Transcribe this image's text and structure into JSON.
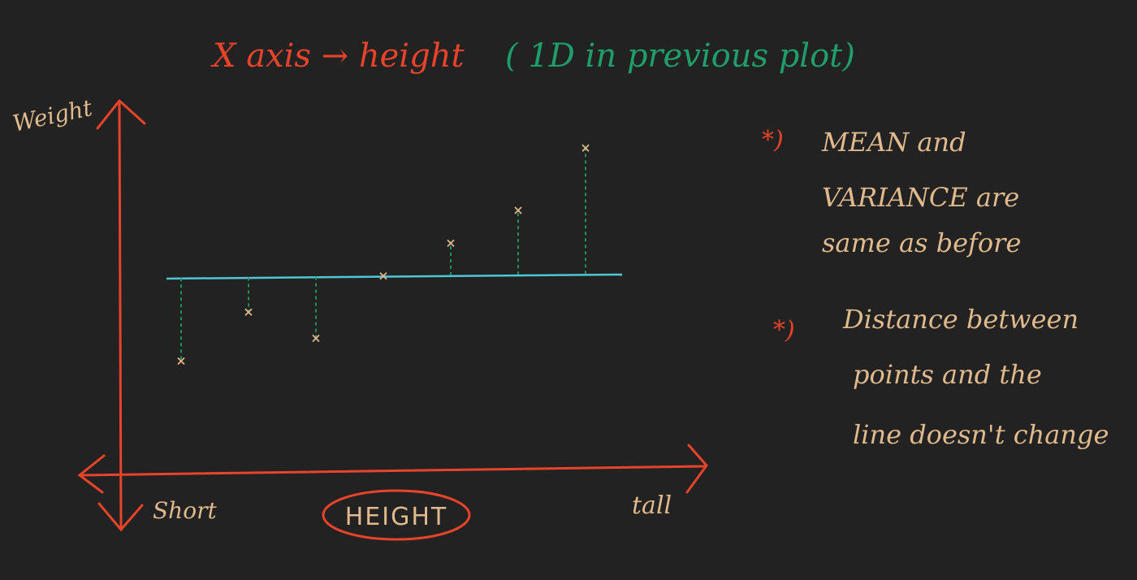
{
  "colors": {
    "background": "#222222",
    "red": "#e8432b",
    "green": "#1f9e6b",
    "tan": "#e0b98c",
    "cyan": "#4fc8d6"
  },
  "title": {
    "red_part": "X axis → height",
    "green_part": "( 1D in previous plot)"
  },
  "axes": {
    "y_label": "Weight",
    "x_center_label": "HEIGHT",
    "x_left_label": "Short",
    "x_right_label": "tall"
  },
  "plot": {
    "mean_line": 0,
    "points": [
      {
        "x": 1,
        "y": -3.1
      },
      {
        "x": 2,
        "y": -1.3
      },
      {
        "x": 3,
        "y": -2.3
      },
      {
        "x": 4,
        "y": 0
      },
      {
        "x": 5,
        "y": 1.2
      },
      {
        "x": 6,
        "y": 2.4
      },
      {
        "x": 7,
        "y": 4.7
      }
    ]
  },
  "notes": [
    {
      "bullet": "*)",
      "lines": [
        "MEAN  and",
        "VARIANCE  are",
        "same  as  before"
      ]
    },
    {
      "bullet": "*)",
      "lines": [
        "Distance  between",
        "points  and  the",
        "line  doesn't  change"
      ]
    }
  ]
}
